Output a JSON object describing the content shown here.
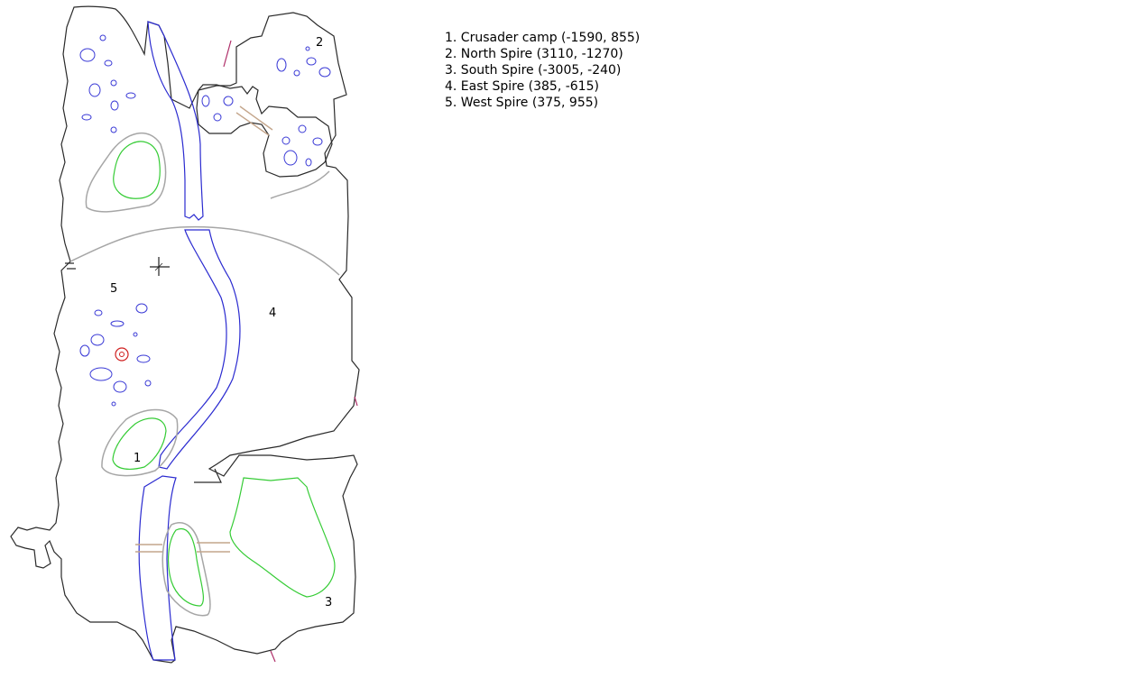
{
  "map": {
    "region_labels": {
      "r1": "1",
      "r2": "2",
      "r3": "3",
      "r4": "4",
      "r5": "5"
    },
    "legend": [
      "1. Crusader camp (-1590, 855)",
      "2. North Spire (3110, -1270)",
      "3. South Spire (-3005, -240)",
      "4. East Spire (385, -615)",
      "5. West Spire (375, 955)"
    ],
    "colors": {
      "outline": "#2a2a2a",
      "river": "#2b2bd0",
      "pond": "#3a3ad6",
      "hill": "#a6a6a6",
      "grass": "#36cc36",
      "bridge": "#c4a68c",
      "gate": "#b0306a",
      "marker": "#d02020"
    },
    "icons": {
      "crosshair": "crosshair-icon",
      "marker": "target-marker-icon"
    }
  }
}
